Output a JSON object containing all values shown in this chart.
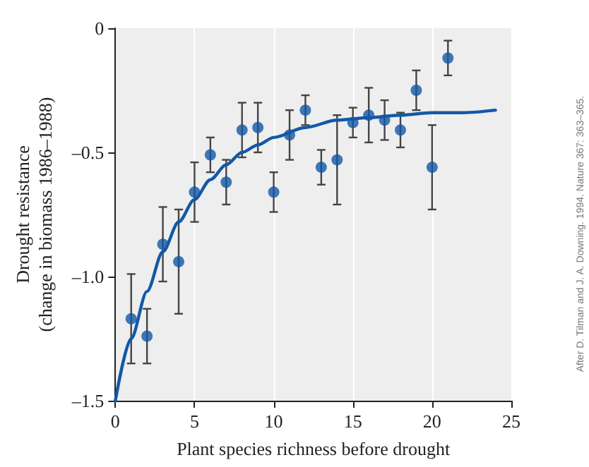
{
  "chart_data": {
    "type": "scatter",
    "xlabel": "Plant species richness before drought",
    "ylabel": "Drought resistance\n(change in biomass 1986–1988)",
    "annotations": [
      "After D. Tilman and J. A. Downing. 1994. Nature 367: 363–365."
    ],
    "xlim": [
      0,
      25
    ],
    "xticks": [
      0,
      5,
      10,
      15,
      20,
      25
    ],
    "ylim": [
      -1.5,
      0
    ],
    "yticks": [
      {
        "value": -1.5,
        "label": "–1.5"
      },
      {
        "value": -1.0,
        "label": "–1.0"
      },
      {
        "value": -0.5,
        "label": "–0.5"
      },
      0
    ],
    "grid": "x",
    "series": [
      {
        "color": "#1258a6",
        "marker": "circle",
        "x": [
          1,
          2,
          3,
          4,
          5,
          6,
          7,
          8,
          9,
          10,
          11,
          12,
          13,
          14,
          15,
          16,
          17,
          18,
          19,
          20,
          21
        ],
        "values": [
          -1.17,
          -1.24,
          -0.87,
          -0.94,
          -0.66,
          -0.51,
          -0.62,
          -0.41,
          -0.4,
          -0.66,
          -0.43,
          -0.33,
          -0.56,
          -0.53,
          -0.38,
          -0.35,
          -0.37,
          -0.41,
          -0.25,
          -0.56,
          -0.12
        ],
        "errors": [
          0.18,
          0.11,
          0.15,
          0.21,
          0.12,
          0.07,
          0.09,
          0.11,
          0.1,
          0.08,
          0.1,
          0.06,
          0.07,
          0.18,
          0.06,
          0.11,
          0.08,
          0.07,
          0.08,
          0.17,
          0.07
        ]
      },
      {
        "type": "line",
        "color": "#1258a6",
        "marker": "none",
        "line_style": "solid",
        "x": [
          0,
          1,
          2,
          3,
          4,
          5,
          6,
          7,
          8,
          9,
          10,
          12,
          14,
          16,
          18,
          20,
          22,
          24
        ],
        "values": [
          -1.5,
          -1.25,
          -1.06,
          -0.9,
          -0.78,
          -0.69,
          -0.61,
          -0.55,
          -0.5,
          -0.47,
          -0.44,
          -0.4,
          -0.37,
          -0.36,
          -0.35,
          -0.34,
          -0.34,
          -0.33
        ]
      }
    ]
  }
}
